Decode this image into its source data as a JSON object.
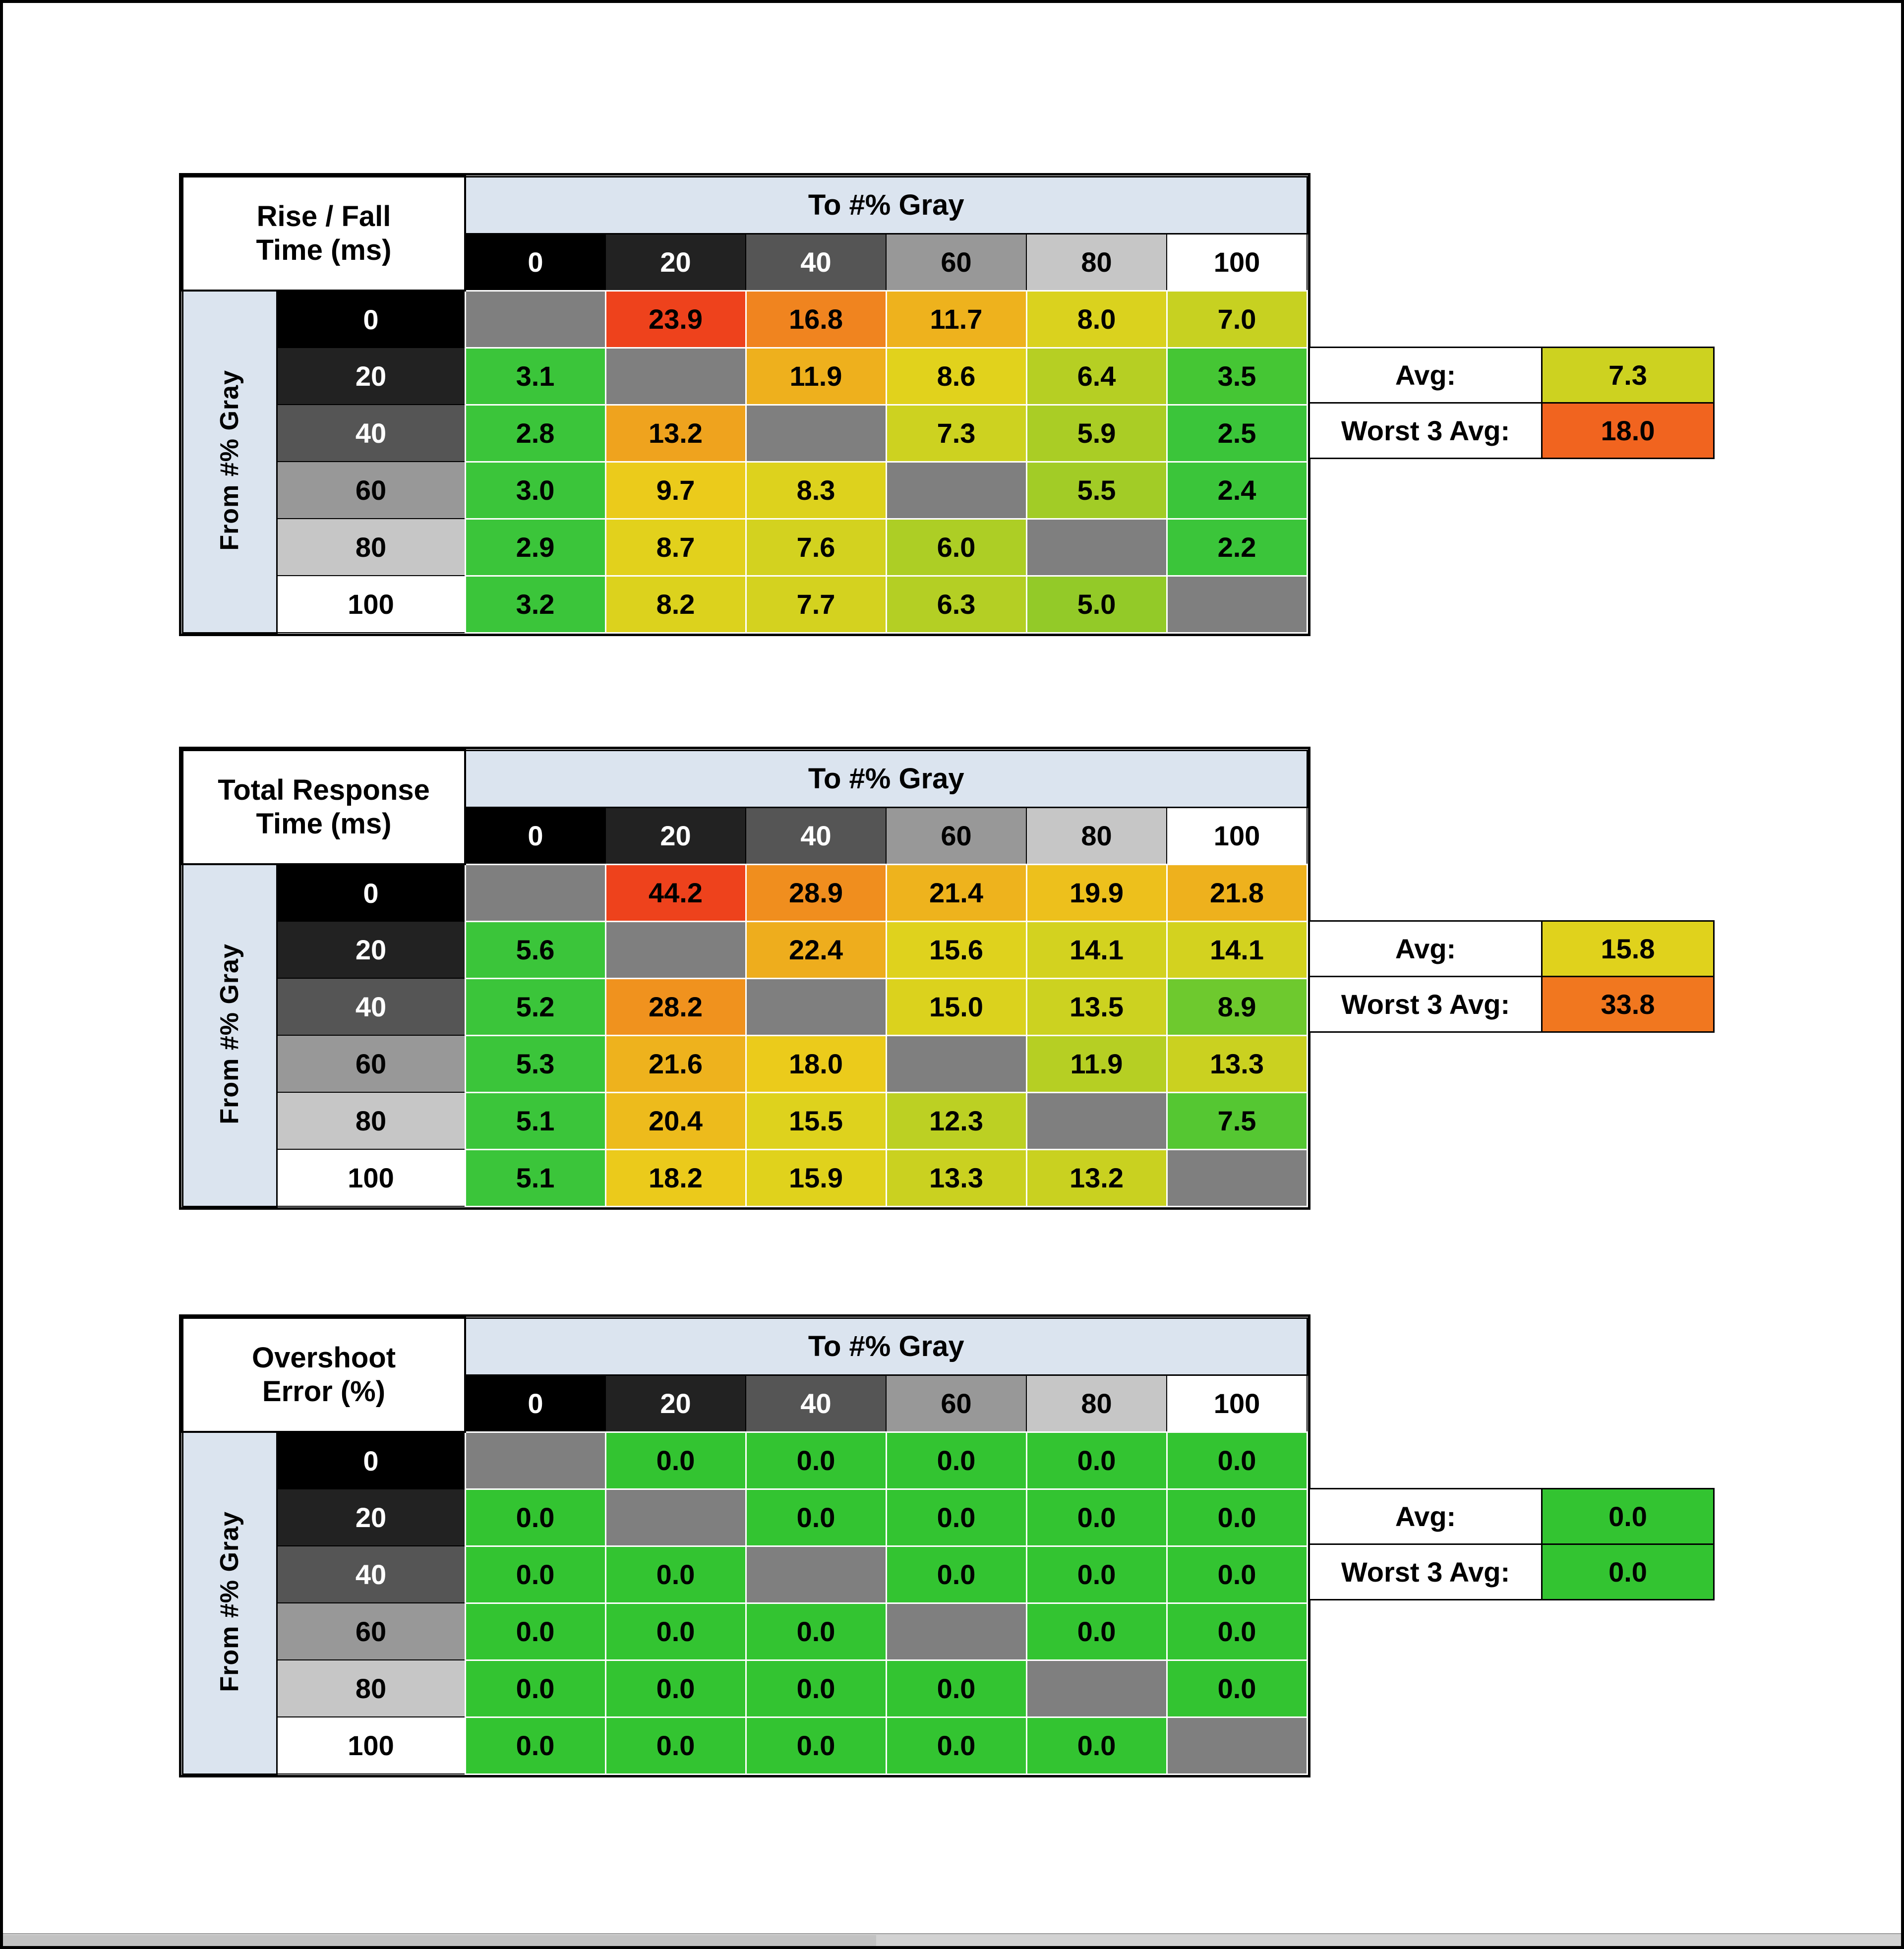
{
  "shared": {
    "to_header": "To #% Gray",
    "from_header": "From #% Gray",
    "avg_label": "Avg:",
    "worst3_label": "Worst 3 Avg:",
    "gray_levels": [
      "0",
      "20",
      "40",
      "60",
      "80",
      "100"
    ],
    "gray_bgs": [
      "#000000",
      "#222222",
      "#555555",
      "#989898",
      "#c6c6c6",
      "#ffffff"
    ],
    "gray_fgs": [
      "#ffffff",
      "#ffffff",
      "#ffffff",
      "#000000",
      "#000000",
      "#000000"
    ],
    "header_blue": "#dbe4ef",
    "diagonal_gray": "#7f7f7f"
  },
  "chart_data": [
    {
      "id": "rise-fall-time",
      "type": "heatmap",
      "title_lines": [
        "Rise / Fall",
        "Time (ms)"
      ],
      "xlabel": "To #% Gray",
      "ylabel": "From #% Gray",
      "categories": [
        0,
        20,
        40,
        60,
        80,
        100
      ],
      "matrix": [
        [
          null,
          23.9,
          16.8,
          11.7,
          8.0,
          7.0
        ],
        [
          3.1,
          null,
          11.9,
          8.6,
          6.4,
          3.5
        ],
        [
          2.8,
          13.2,
          null,
          7.3,
          5.9,
          2.5
        ],
        [
          3.0,
          9.7,
          8.3,
          null,
          5.5,
          2.4
        ],
        [
          2.9,
          8.7,
          7.6,
          6.0,
          null,
          2.2
        ],
        [
          3.2,
          8.2,
          7.7,
          6.3,
          5.0,
          null
        ]
      ],
      "cell_colors": [
        [
          null,
          "#ee421c",
          "#f0841f",
          "#eeb21d",
          "#dad21e",
          "#c7d121"
        ],
        [
          "#3bc53a",
          null,
          "#eeb01d",
          "#e1d21c",
          "#b6cf23",
          "#45c634"
        ],
        [
          "#3bc53a",
          "#efa31e",
          null,
          "#cdd220",
          "#aacd25",
          "#3bc53a"
        ],
        [
          "#3bc53a",
          "#ebcb1b",
          "#ddd21d",
          null,
          "#a2cc26",
          "#3bc53a"
        ],
        [
          "#3bc53a",
          "#e2d11c",
          "#d3d21f",
          "#adce25",
          null,
          "#3bc53a"
        ],
        [
          "#3bc53a",
          "#dcd21d",
          "#d4d21f",
          "#b4cf24",
          "#93ca28",
          null
        ]
      ],
      "avg": 7.3,
      "avg_color": "#cdd220",
      "worst3_avg": 18.0,
      "worst3_color": "#f1641f"
    },
    {
      "id": "total-response-time",
      "type": "heatmap",
      "title_lines": [
        "Total Response",
        "Time (ms)"
      ],
      "xlabel": "To #% Gray",
      "ylabel": "From #% Gray",
      "categories": [
        0,
        20,
        40,
        60,
        80,
        100
      ],
      "matrix": [
        [
          null,
          44.2,
          28.9,
          21.4,
          19.9,
          21.8
        ],
        [
          5.6,
          null,
          22.4,
          15.6,
          14.1,
          14.1
        ],
        [
          5.2,
          28.2,
          null,
          15.0,
          13.5,
          8.9
        ],
        [
          5.3,
          21.6,
          18.0,
          null,
          11.9,
          13.3
        ],
        [
          5.1,
          20.4,
          15.5,
          12.3,
          null,
          7.5
        ],
        [
          5.1,
          18.2,
          15.9,
          13.3,
          13.2,
          null
        ]
      ],
      "cell_colors": [
        [
          null,
          "#ee421c",
          "#f08e1e",
          "#eeb31d",
          "#edc01c",
          "#eeb11d"
        ],
        [
          "#3bc53a",
          null,
          "#eead1d",
          "#dfd21d",
          "#d3d21f",
          "#d3d21f"
        ],
        [
          "#3bc53a",
          "#f0921e",
          null,
          "#dbd21d",
          "#ccd220",
          "#6ec92e"
        ],
        [
          "#3bc53a",
          "#eeb21d",
          "#ebcb1b",
          null,
          "#b6cf23",
          "#cad120"
        ],
        [
          "#3bc53a",
          "#edbb1c",
          "#ded21d",
          "#bcd023",
          null,
          "#55c732"
        ],
        [
          "#3bc53a",
          "#ebca1b",
          "#e0d21c",
          "#cad120",
          "#c9d120",
          null
        ]
      ],
      "avg": 15.8,
      "avg_color": "#e0d21c",
      "worst3_avg": 33.8,
      "worst3_color": "#f1771f"
    },
    {
      "id": "overshoot-error",
      "type": "heatmap",
      "title_lines": [
        "Overshoot",
        "Error (%)"
      ],
      "xlabel": "To #% Gray",
      "ylabel": "From #% Gray",
      "categories": [
        0,
        20,
        40,
        60,
        80,
        100
      ],
      "matrix": [
        [
          null,
          0.0,
          0.0,
          0.0,
          0.0,
          0.0
        ],
        [
          0.0,
          null,
          0.0,
          0.0,
          0.0,
          0.0
        ],
        [
          0.0,
          0.0,
          null,
          0.0,
          0.0,
          0.0
        ],
        [
          0.0,
          0.0,
          0.0,
          null,
          0.0,
          0.0
        ],
        [
          0.0,
          0.0,
          0.0,
          0.0,
          null,
          0.0
        ],
        [
          0.0,
          0.0,
          0.0,
          0.0,
          0.0,
          null
        ]
      ],
      "cell_colors": [
        [
          null,
          "#33c431",
          "#33c431",
          "#33c431",
          "#33c431",
          "#33c431"
        ],
        [
          "#33c431",
          null,
          "#33c431",
          "#33c431",
          "#33c431",
          "#33c431"
        ],
        [
          "#33c431",
          "#33c431",
          null,
          "#33c431",
          "#33c431",
          "#33c431"
        ],
        [
          "#33c431",
          "#33c431",
          "#33c431",
          null,
          "#33c431",
          "#33c431"
        ],
        [
          "#33c431",
          "#33c431",
          "#33c431",
          "#33c431",
          null,
          "#33c431"
        ],
        [
          "#33c431",
          "#33c431",
          "#33c431",
          "#33c431",
          "#33c431",
          null
        ]
      ],
      "avg": 0.0,
      "avg_color": "#33c431",
      "worst3_avg": 0.0,
      "worst3_color": "#33c431"
    }
  ]
}
